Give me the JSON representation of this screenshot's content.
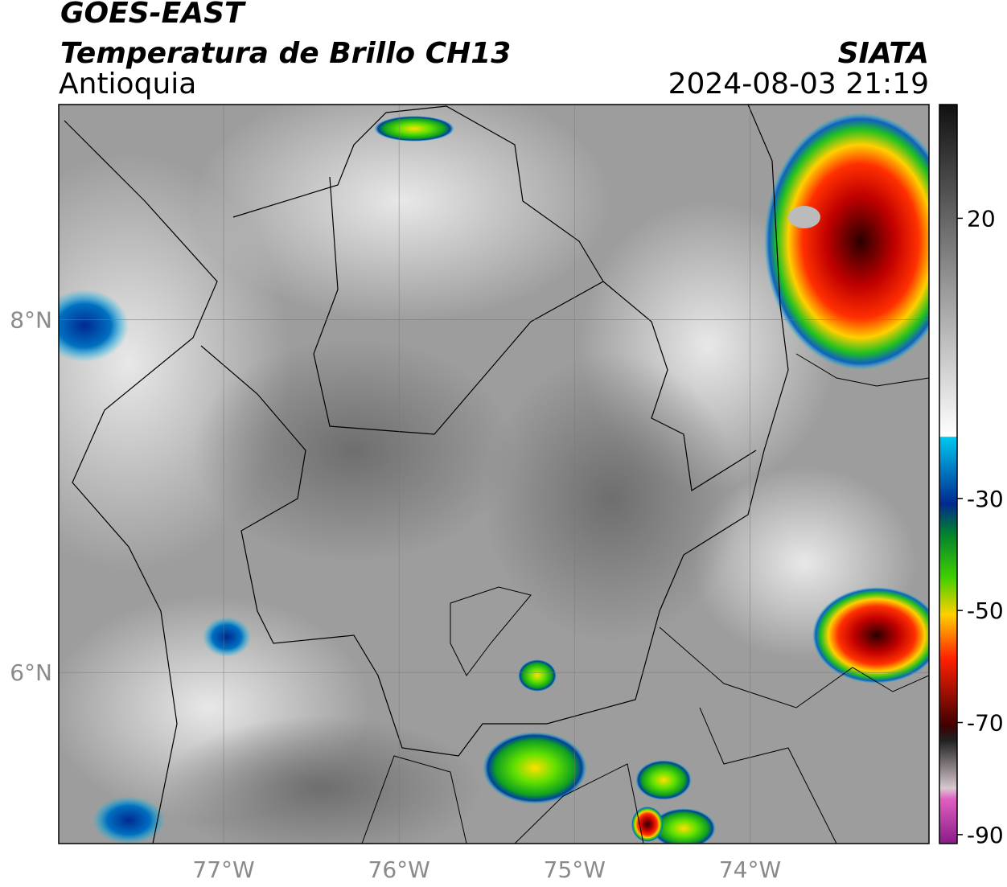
{
  "header": {
    "title": "GOES-EAST",
    "subtitle": "Temperatura de Brillo CH13",
    "region": "Antioquia",
    "source": "SIATA",
    "datetime": "2024-08-03 21:19"
  },
  "map": {
    "lonlim": [
      -77.94,
      -72.98
    ],
    "latlim": [
      5.03,
      9.22
    ],
    "lon_ticks": [
      {
        "value": -77,
        "label": "77°W"
      },
      {
        "value": -76,
        "label": "76°W"
      },
      {
        "value": -75,
        "label": "75°W"
      },
      {
        "value": -74,
        "label": "74°W"
      }
    ],
    "lat_ticks": [
      {
        "value": 8,
        "label": "8°N"
      },
      {
        "value": 6,
        "label": "6°N"
      }
    ],
    "grid": true
  },
  "colorbar": {
    "lim": [
      -91.6,
      40.3
    ],
    "ticks": [
      20,
      -30,
      -50,
      -70,
      -90
    ]
  }
}
